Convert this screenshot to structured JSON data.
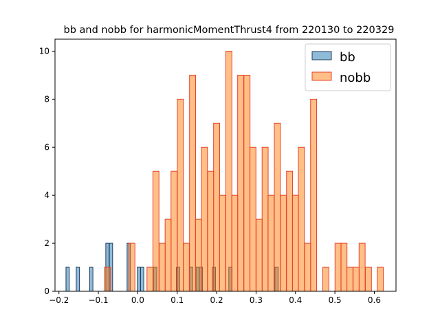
{
  "chart_data": {
    "type": "bar",
    "title": "bb and nobb for harmonicMomentThrust4 from 220130 to 220329",
    "xlabel": "",
    "ylabel": "",
    "xlim": [
      -0.21,
      0.655
    ],
    "ylim": [
      0,
      10.5
    ],
    "xticks": [
      "−0.2",
      "−0.1",
      "0.0",
      "0.1",
      "0.2",
      "0.3",
      "0.4",
      "0.5",
      "0.6"
    ],
    "xtick_values": [
      -0.2,
      -0.1,
      0.0,
      0.1,
      0.2,
      0.3,
      0.4,
      0.5,
      0.6
    ],
    "yticks": [
      "0",
      "2",
      "4",
      "6",
      "8",
      "10"
    ],
    "ytick_values": [
      0,
      2,
      4,
      6,
      8,
      10
    ],
    "legend_position": "top-right",
    "series": [
      {
        "name": "bb",
        "fill": "#1f77b4",
        "fill_opacity": 0.5,
        "edge": "#1f3b5a",
        "bin_width": 0.0083,
        "bins": [
          {
            "x": -0.178,
            "y": 1
          },
          {
            "x": -0.152,
            "y": 1
          },
          {
            "x": -0.118,
            "y": 1
          },
          {
            "x": -0.077,
            "y": 2
          },
          {
            "x": -0.068,
            "y": 2
          },
          {
            "x": -0.023,
            "y": 2
          },
          {
            "x": 0.003,
            "y": 1
          },
          {
            "x": 0.011,
            "y": 1
          },
          {
            "x": 0.044,
            "y": 1
          },
          {
            "x": 0.102,
            "y": 1
          },
          {
            "x": 0.135,
            "y": 1
          },
          {
            "x": 0.152,
            "y": 1
          },
          {
            "x": 0.16,
            "y": 1
          },
          {
            "x": 0.193,
            "y": 1
          },
          {
            "x": 0.235,
            "y": 1
          },
          {
            "x": 0.352,
            "y": 1
          }
        ]
      },
      {
        "name": "nobb",
        "fill": "#ff7f0e",
        "fill_opacity": 0.5,
        "edge": "#e8412c",
        "bin_width": 0.0154,
        "bins": [
          {
            "x": -0.077,
            "y": 1
          },
          {
            "x": -0.061,
            "y": 0
          },
          {
            "x": -0.046,
            "y": 0
          },
          {
            "x": -0.031,
            "y": 0
          },
          {
            "x": -0.015,
            "y": 2
          },
          {
            "x": 0.0,
            "y": 0
          },
          {
            "x": 0.015,
            "y": 0
          },
          {
            "x": 0.031,
            "y": 1
          },
          {
            "x": 0.046,
            "y": 5
          },
          {
            "x": 0.062,
            "y": 2
          },
          {
            "x": 0.077,
            "y": 3
          },
          {
            "x": 0.092,
            "y": 5
          },
          {
            "x": 0.108,
            "y": 8
          },
          {
            "x": 0.123,
            "y": 2
          },
          {
            "x": 0.139,
            "y": 9
          },
          {
            "x": 0.154,
            "y": 3
          },
          {
            "x": 0.169,
            "y": 6
          },
          {
            "x": 0.185,
            "y": 5
          },
          {
            "x": 0.2,
            "y": 7
          },
          {
            "x": 0.215,
            "y": 4
          },
          {
            "x": 0.231,
            "y": 10
          },
          {
            "x": 0.246,
            "y": 4
          },
          {
            "x": 0.261,
            "y": 9
          },
          {
            "x": 0.277,
            "y": 9
          },
          {
            "x": 0.292,
            "y": 6
          },
          {
            "x": 0.308,
            "y": 3
          },
          {
            "x": 0.323,
            "y": 6
          },
          {
            "x": 0.338,
            "y": 4
          },
          {
            "x": 0.354,
            "y": 7
          },
          {
            "x": 0.369,
            "y": 4
          },
          {
            "x": 0.385,
            "y": 5
          },
          {
            "x": 0.4,
            "y": 4
          },
          {
            "x": 0.415,
            "y": 6
          },
          {
            "x": 0.431,
            "y": 2
          },
          {
            "x": 0.446,
            "y": 8
          },
          {
            "x": 0.462,
            "y": 0
          },
          {
            "x": 0.477,
            "y": 1
          },
          {
            "x": 0.492,
            "y": 0
          },
          {
            "x": 0.508,
            "y": 2
          },
          {
            "x": 0.523,
            "y": 2
          },
          {
            "x": 0.538,
            "y": 1
          },
          {
            "x": 0.554,
            "y": 1
          },
          {
            "x": 0.569,
            "y": 2
          },
          {
            "x": 0.585,
            "y": 1
          },
          {
            "x": 0.6,
            "y": 0
          },
          {
            "x": 0.615,
            "y": 1
          }
        ]
      }
    ]
  }
}
